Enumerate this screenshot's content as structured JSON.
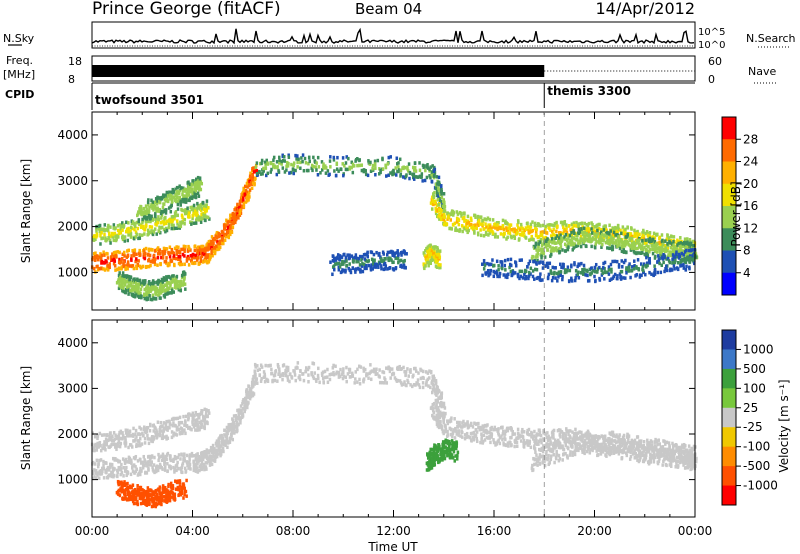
{
  "header": {
    "station": "Prince George (fitACF)",
    "beam": "Beam 04",
    "date": "14/Apr/2012"
  },
  "summary_panels": {
    "nsky_label": "N.Sky",
    "nsearch_label": "N.Search",
    "noise_ticks": [
      "10^5",
      "10^0"
    ],
    "freq_label_line1": "Freq.",
    "freq_label_line2": "[MHz]",
    "freq_ticks": [
      "18",
      "8"
    ],
    "nave_label": "Nave",
    "nave_ticks": [
      "60",
      "0"
    ],
    "cpid_label": "CPID",
    "cpid_segments": [
      {
        "name": "twofsound 3501",
        "start_hour": 0,
        "end_hour": 18
      },
      {
        "name": "themis 3300",
        "start_hour": 18,
        "end_hour": 24
      }
    ]
  },
  "x_axis": {
    "title": "Time UT",
    "tick_labels": [
      "00:00",
      "04:00",
      "08:00",
      "12:00",
      "16:00",
      "20:00",
      "00:00"
    ],
    "range_hours": [
      0,
      24
    ]
  },
  "chart_data": [
    {
      "type": "heatmap",
      "parameter": "Power",
      "ylabel": "Slant Range [km]",
      "ylim": [
        180,
        4500
      ],
      "yticks": [
        "1000",
        "2000",
        "3000",
        "4000"
      ],
      "colorbar_label": "Power [dB]",
      "colorbar_ticks": [
        "28",
        "24",
        "20",
        "16",
        "12",
        "8",
        "4"
      ],
      "colorbar_colors": [
        "#ff0000",
        "#ff6a00",
        "#ffb000",
        "#f0e000",
        "#9ad050",
        "#3c8c5a",
        "#1e50b4",
        "#0000ff"
      ],
      "echo_bands": [
        {
          "t": [
            0.0,
            1.0,
            2.0,
            3.0,
            4.0,
            4.5,
            5.0,
            5.5,
            6.0,
            6.5
          ],
          "r": [
            1250,
            1300,
            1350,
            1400,
            1400,
            1450,
            1750,
            2100,
            2650,
            3300
          ],
          "power": 26
        },
        {
          "t": [
            0.0,
            1.0,
            2.0,
            3.0,
            4.0,
            4.6
          ],
          "r": [
            1850,
            1900,
            2000,
            2150,
            2300,
            2400
          ],
          "power": 16
        },
        {
          "t": [
            1.8,
            2.5,
            3.2,
            3.8,
            4.3
          ],
          "r": [
            2350,
            2450,
            2650,
            2800,
            2950
          ],
          "power": 14
        },
        {
          "t": [
            1.0,
            1.5,
            2.0,
            2.5,
            3.0,
            3.7
          ],
          "r": [
            850,
            750,
            650,
            650,
            750,
            850
          ],
          "power": 14
        },
        {
          "t": [
            6.5,
            8.0,
            10.0,
            12.0,
            13.5,
            14.0
          ],
          "r": [
            3350,
            3400,
            3350,
            3350,
            3200,
            2500
          ],
          "power": 12
        },
        {
          "t": [
            13.5,
            14.0,
            15.0,
            16.0,
            17.0,
            18.0,
            19.0,
            20.0,
            21.0,
            22.0,
            23.0,
            24.0
          ],
          "r": [
            2600,
            2200,
            2100,
            2000,
            1950,
            1900,
            1950,
            1900,
            1850,
            1750,
            1650,
            1550
          ],
          "power": 18
        },
        {
          "t": [
            17.5,
            18.5,
            19.5,
            20.5,
            21.5,
            22.5,
            23.5,
            24.0
          ],
          "r": [
            1450,
            1650,
            1800,
            1750,
            1650,
            1550,
            1500,
            1450
          ],
          "power": 14
        },
        {
          "t": [
            15.5,
            17.0,
            18.5,
            20.0,
            21.5,
            23.0,
            24.0
          ],
          "r": [
            1150,
            1100,
            1050,
            1050,
            1100,
            1250,
            1350
          ],
          "power": 8
        },
        {
          "t": [
            9.5,
            10.5,
            11.5,
            12.5
          ],
          "r": [
            1200,
            1250,
            1300,
            1300
          ],
          "power": 8
        },
        {
          "t": [
            13.2,
            13.5,
            13.8
          ],
          "r": [
            1300,
            1500,
            1300
          ],
          "power": 18
        }
      ]
    },
    {
      "type": "heatmap",
      "parameter": "Velocity",
      "ylabel": "Slant Range [km]",
      "ylim": [
        180,
        4500
      ],
      "yticks": [
        "1000",
        "2000",
        "3000",
        "4000"
      ],
      "colorbar_label": "Velocity [m s⁻¹]",
      "colorbar_ticks": [
        "1000",
        "500",
        "100",
        "25",
        "-25",
        "-100",
        "-500",
        "-1000"
      ],
      "colorbar_colors": [
        "#1e3ca0",
        "#3c78c8",
        "#3ca03c",
        "#78c83c",
        "#c8c8c8",
        "#f0c800",
        "#ff8c00",
        "#ff5000",
        "#ff0000"
      ],
      "echo_bands": [
        {
          "t": [
            0.0,
            1.0,
            2.0,
            3.0,
            4.0,
            4.5,
            5.0,
            5.5,
            6.0,
            6.5
          ],
          "r": [
            1250,
            1300,
            1350,
            1400,
            1400,
            1450,
            1750,
            2100,
            2650,
            3300
          ],
          "velocity": 0
        },
        {
          "t": [
            0.0,
            1.0,
            2.0,
            3.0,
            4.0,
            4.6
          ],
          "r": [
            1850,
            1900,
            2000,
            2150,
            2300,
            2400
          ],
          "velocity": -50
        },
        {
          "t": [
            1.0,
            1.5,
            2.0,
            2.5,
            3.0,
            3.7
          ],
          "r": [
            850,
            750,
            650,
            650,
            750,
            850
          ],
          "velocity": -400
        },
        {
          "t": [
            6.5,
            8.0,
            10.0,
            12.0,
            13.5,
            14.0
          ],
          "r": [
            3350,
            3400,
            3350,
            3350,
            3200,
            2500
          ],
          "velocity": 0
        },
        {
          "t": [
            13.5,
            14.0,
            15.0,
            16.0,
            17.0,
            18.0,
            19.0,
            20.0,
            21.0,
            22.0,
            23.0,
            24.0
          ],
          "r": [
            2600,
            2200,
            2100,
            2000,
            1950,
            1900,
            1950,
            1900,
            1850,
            1750,
            1650,
            1550
          ],
          "velocity": 0
        },
        {
          "t": [
            17.5,
            18.5,
            19.5,
            20.5,
            21.5,
            22.5,
            23.5,
            24.0
          ],
          "r": [
            1450,
            1650,
            1800,
            1750,
            1650,
            1550,
            1500,
            1450
          ],
          "velocity": 0
        },
        {
          "t": [
            13.3,
            13.6,
            14.0,
            14.5
          ],
          "r": [
            1400,
            1600,
            1700,
            1650
          ],
          "velocity": 150
        }
      ]
    }
  ]
}
